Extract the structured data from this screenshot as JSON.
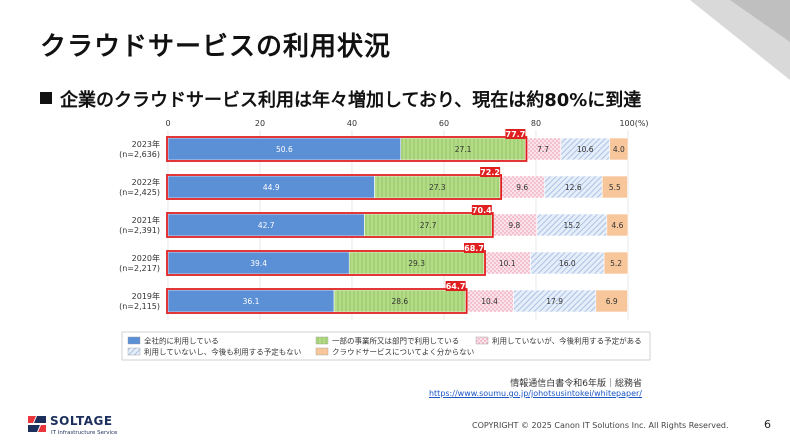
{
  "slide": {
    "title": "クラウドサービスの利用状況",
    "subtitle": "企業のクラウドサービス利用は年々増加しており、現在は約80%に到達",
    "source": "情報通信白書令和6年版｜総務省",
    "source_url": "https://www.soumu.go.jp/johotsusintokei/whitepaper/",
    "copyright": "COPYRIGHT © 2025 Canon IT Solutions Inc. All Rights Reserved.",
    "page_number": "6",
    "logo": {
      "name": "SOLTAGE",
      "tagline": "IT Infrastructure Service"
    }
  },
  "chart_data": {
    "type": "bar",
    "orientation": "horizontal",
    "stacked": true,
    "xlim": [
      0,
      100
    ],
    "x_ticks": [
      "0",
      "20",
      "40",
      "60",
      "80",
      "100(%)"
    ],
    "categories": [
      {
        "year": "2023年",
        "n": "(n=2,636)"
      },
      {
        "year": "2022年",
        "n": "(n=2,425)"
      },
      {
        "year": "2021年",
        "n": "(n=2,391)"
      },
      {
        "year": "2020年",
        "n": "(n=2,217)"
      },
      {
        "year": "2019年",
        "n": "(n=2,115)"
      }
    ],
    "series": [
      {
        "name": "全社的に利用している",
        "values": [
          50.6,
          44.9,
          42.7,
          39.4,
          36.1
        ],
        "color": "#5b8fd6",
        "pattern": "solid"
      },
      {
        "name": "一部の事業所又は部門で利用している",
        "values": [
          27.1,
          27.3,
          27.7,
          29.3,
          28.6
        ],
        "color": "#a9d67a",
        "pattern": "vlines"
      },
      {
        "name": "利用していないが、今後利用する予定がある",
        "values": [
          7.7,
          9.6,
          9.8,
          10.1,
          10.4
        ],
        "color": "#f6d3de",
        "pattern": "dots"
      },
      {
        "name": "利用していないし、今後も利用する予定もない",
        "values": [
          10.6,
          12.6,
          15.2,
          16.0,
          17.9
        ],
        "color": "#d6e2f3",
        "pattern": "diag"
      },
      {
        "name": "クラウドサービスについてよく分からない",
        "values": [
          4.0,
          5.5,
          4.6,
          5.2,
          6.9
        ],
        "color": "#f7c69b",
        "pattern": "solid"
      }
    ],
    "highlight_totals": [
      "77.7",
      "72.2",
      "70.4",
      "68.7",
      "64.7"
    ],
    "highlight_color": "#e02020"
  }
}
